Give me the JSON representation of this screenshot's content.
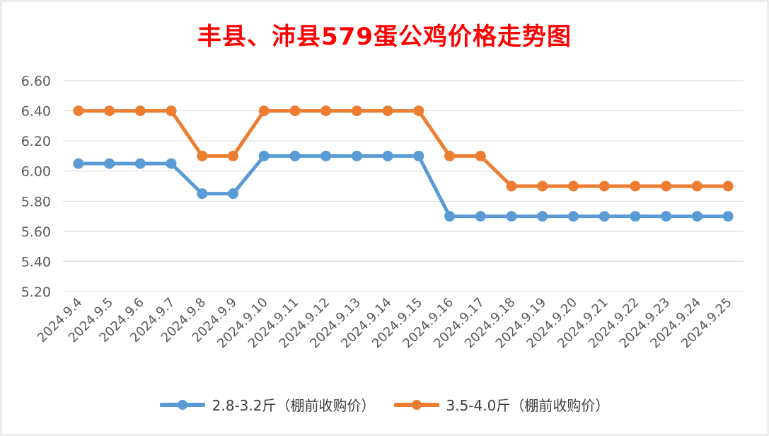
{
  "chart_data": {
    "type": "line",
    "title": "丰县、沛县579蛋公鸡价格走势图",
    "xlabel": "",
    "ylabel": "",
    "categories": [
      "2024.9.4",
      "2024.9.5",
      "2024.9.6",
      "2024.9.7",
      "2024.9.8",
      "2024.9.9",
      "2024.9.10",
      "2024.9.11",
      "2024.9.12",
      "2024.9.13",
      "2024.9.14",
      "2024.9.15",
      "2024.9.16",
      "2024.9.17",
      "2024.9.18",
      "2024.9.19",
      "2024.9.20",
      "2024.9.21",
      "2024.9.22",
      "2024.9.23",
      "2024.9.24",
      "2024.9.25"
    ],
    "ylim": [
      5.2,
      6.6
    ],
    "yticks": [
      "5.20",
      "5.40",
      "5.60",
      "5.80",
      "6.00",
      "6.20",
      "6.40",
      "6.60"
    ],
    "grid": true,
    "legend_position": "bottom",
    "series": [
      {
        "name": "2.8-3.2斤（棚前收购价）",
        "color": "#5b9bd5",
        "values": [
          6.05,
          6.05,
          6.05,
          6.05,
          5.85,
          5.85,
          6.1,
          6.1,
          6.1,
          6.1,
          6.1,
          6.1,
          5.7,
          5.7,
          5.7,
          5.7,
          5.7,
          5.7,
          5.7,
          5.7,
          5.7,
          5.7
        ]
      },
      {
        "name": "3.5-4.0斤（棚前收购价）",
        "color": "#ed7d31",
        "values": [
          6.4,
          6.4,
          6.4,
          6.4,
          6.1,
          6.1,
          6.4,
          6.4,
          6.4,
          6.4,
          6.4,
          6.4,
          6.1,
          6.1,
          5.9,
          5.9,
          5.9,
          5.9,
          5.9,
          5.9,
          5.9,
          5.9
        ]
      }
    ]
  }
}
